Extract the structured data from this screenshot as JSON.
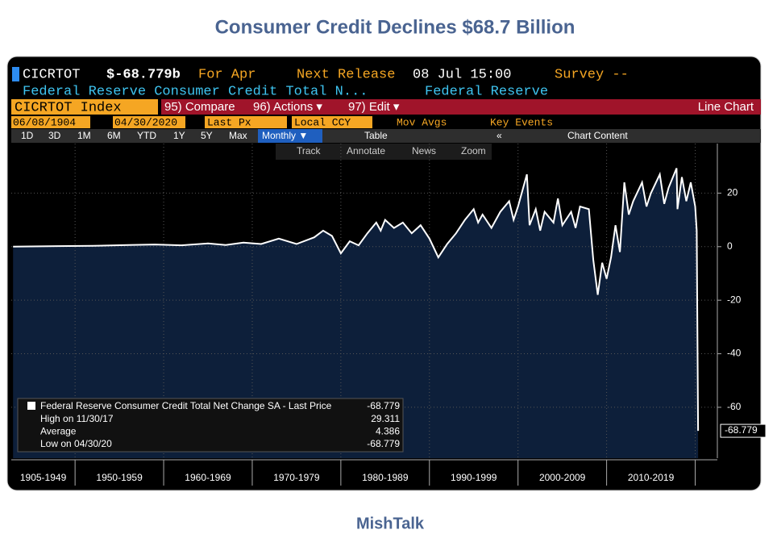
{
  "page": {
    "title": "Consumer Credit Declines $68.7 Billion",
    "footer": "MishTalk",
    "terminal": {
      "ticker": "CICRTOT",
      "last": "$-68.779b",
      "period": "For Apr",
      "next_release_label": "Next Release",
      "next_release": "08 Jul 15:00",
      "survey": "Survey --",
      "description": "Federal Reserve Consumer Credit Total N...",
      "source": "Federal Reserve",
      "security": "CICRTOT Index",
      "compare": "95) Compare",
      "actions": "96) Actions ▾",
      "edit": "97) Edit ▾",
      "chart_kind": "Line Chart",
      "start_date": "06/08/1904",
      "end_date": "04/30/2020",
      "field": "Last Px",
      "currency": "Local CCY",
      "mov_avgs": "Mov Avgs",
      "key_events": "Key Events",
      "ranges": [
        "1D",
        "3D",
        "1M",
        "6M",
        "YTD",
        "1Y",
        "5Y",
        "Max"
      ],
      "frequency": "Monthly ▼",
      "table": "Table",
      "collapse": "«",
      "chart_content": "Chart Content",
      "tools": [
        "Track",
        "Annotate",
        "News",
        "Zoom"
      ]
    }
  },
  "chart_data": {
    "type": "line",
    "x": [
      1943,
      1948,
      1952,
      1956,
      1959,
      1962,
      1965,
      1967,
      1969,
      1971,
      1973,
      1975,
      1977,
      1978,
      1979,
      1980,
      1981,
      1982,
      1983,
      1984,
      1984.5,
      1985,
      1986,
      1987,
      1988,
      1989,
      1990,
      1991,
      1992,
      1993,
      1994,
      1995,
      1995.5,
      1996,
      1997,
      1998,
      1999,
      1999.5,
      2000,
      2001,
      2001.3,
      2002,
      2002.5,
      2003,
      2004,
      2004.5,
      2005,
      2006,
      2006.5,
      2007,
      2008,
      2008.5,
      2009,
      2009.5,
      2010,
      2010.5,
      2011,
      2011.5,
      2012,
      2012.5,
      2013,
      2014,
      2014.5,
      2015,
      2016,
      2016.5,
      2017,
      2017.9,
      2018,
      2018.5,
      2019,
      2019.5,
      2020,
      2020.17,
      2020.33
    ],
    "series": [
      {
        "name": "Federal Reserve Consumer Credit Total Net Change SA - Last Price",
        "color": "#ffffff",
        "values": [
          0,
          0.2,
          0.3,
          0.6,
          0.8,
          0.5,
          1.2,
          0.6,
          1.5,
          1,
          3,
          1,
          3.5,
          6,
          4,
          -2.5,
          2,
          0.5,
          5,
          9,
          6,
          10,
          7,
          9,
          5,
          8,
          3,
          -4,
          1,
          5,
          10,
          14,
          9,
          12,
          7,
          13,
          17,
          10,
          15,
          27,
          8,
          14,
          6,
          13,
          9,
          18,
          8,
          13,
          7,
          15,
          14,
          -5,
          -18,
          -6,
          -12,
          -4,
          8,
          -2,
          24,
          12,
          17,
          24,
          15,
          20,
          27,
          16,
          22,
          29.311,
          14,
          26,
          17,
          24,
          15,
          6,
          -68.779
        ]
      }
    ],
    "area_color": "#0d1f3a",
    "xlim": [
      1942.8,
      2022.5
    ],
    "ylim": [
      -79,
      38.5
    ],
    "yticks": [
      20,
      0,
      -20,
      -40,
      -60
    ],
    "grid": true,
    "xbands": {
      "labels": [
        "1905-1949",
        "1950-1959",
        "1960-1969",
        "1970-1979",
        "1980-1989",
        "1990-1999",
        "2000-2009",
        "2010-2019"
      ],
      "edges": [
        1950,
        1960,
        1970,
        1980,
        1990,
        2000,
        2010,
        2020
      ]
    },
    "last_price": -68.779,
    "stats": [
      {
        "label": "High on 11/30/17",
        "value": 29.311
      },
      {
        "label": "Average",
        "value": 4.386
      },
      {
        "label": "Low on 04/30/20",
        "value": -68.779
      }
    ]
  }
}
